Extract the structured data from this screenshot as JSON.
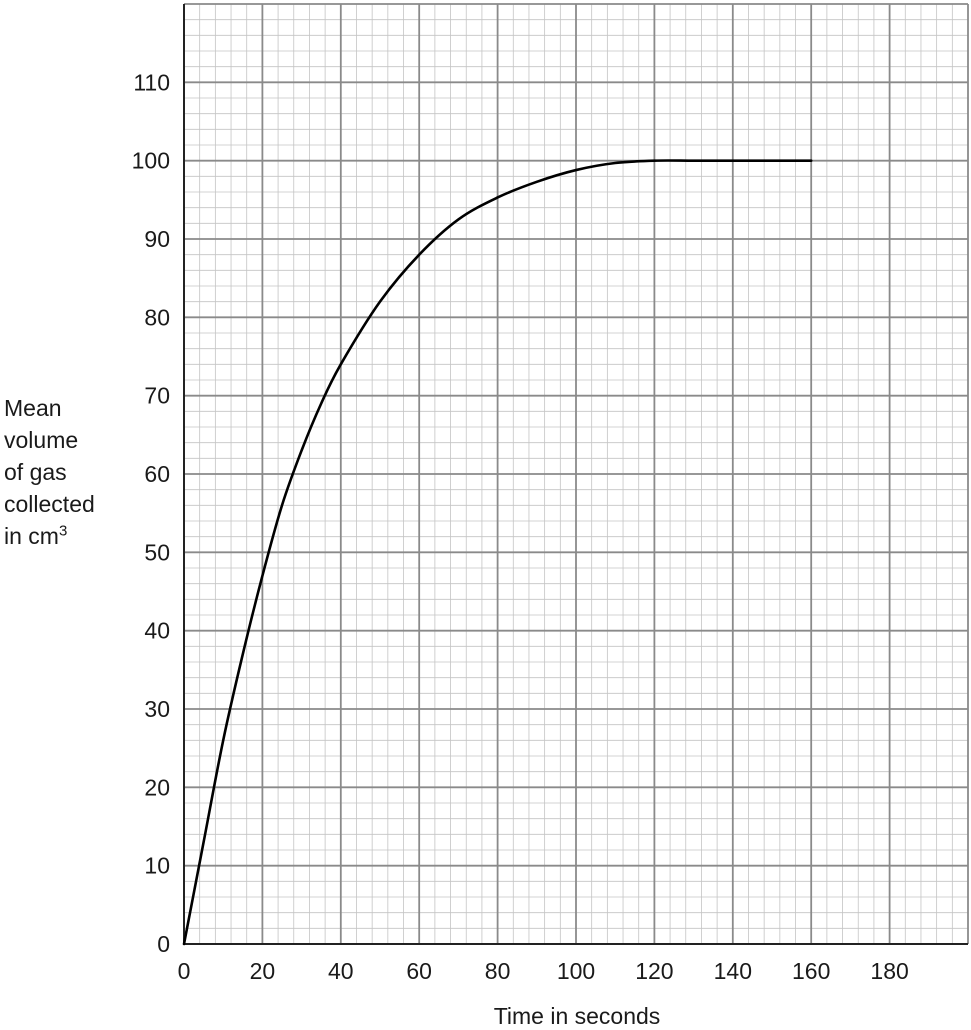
{
  "chart_data": {
    "type": "line",
    "title": "",
    "xlabel": "Time in seconds",
    "ylabel": {
      "lines": [
        "Mean",
        "volume",
        "of gas",
        "collected"
      ],
      "last_line_prefix": "in cm",
      "last_line_superscript": "3"
    },
    "xlim": [
      0,
      200
    ],
    "ylim": [
      0,
      120
    ],
    "x_ticks": [
      "0",
      "20",
      "40",
      "60",
      "80",
      "100",
      "120",
      "140",
      "160",
      "180"
    ],
    "y_ticks": [
      "0",
      "10",
      "20",
      "30",
      "40",
      "50",
      "60",
      "70",
      "80",
      "90",
      "100",
      "110"
    ],
    "grid": true,
    "legend": "none",
    "line_color": "#000000",
    "series": [
      {
        "x": [
          0,
          5,
          10,
          15,
          20,
          25,
          30,
          35,
          40,
          50,
          60,
          70,
          80,
          90,
          100,
          110,
          120,
          130,
          140,
          150,
          160
        ],
        "y": [
          0,
          13,
          26,
          37,
          47,
          56,
          63,
          69,
          74,
          82,
          88,
          92.5,
          95.3,
          97.3,
          98.8,
          99.7,
          100,
          100,
          100,
          100,
          100
        ]
      }
    ]
  }
}
